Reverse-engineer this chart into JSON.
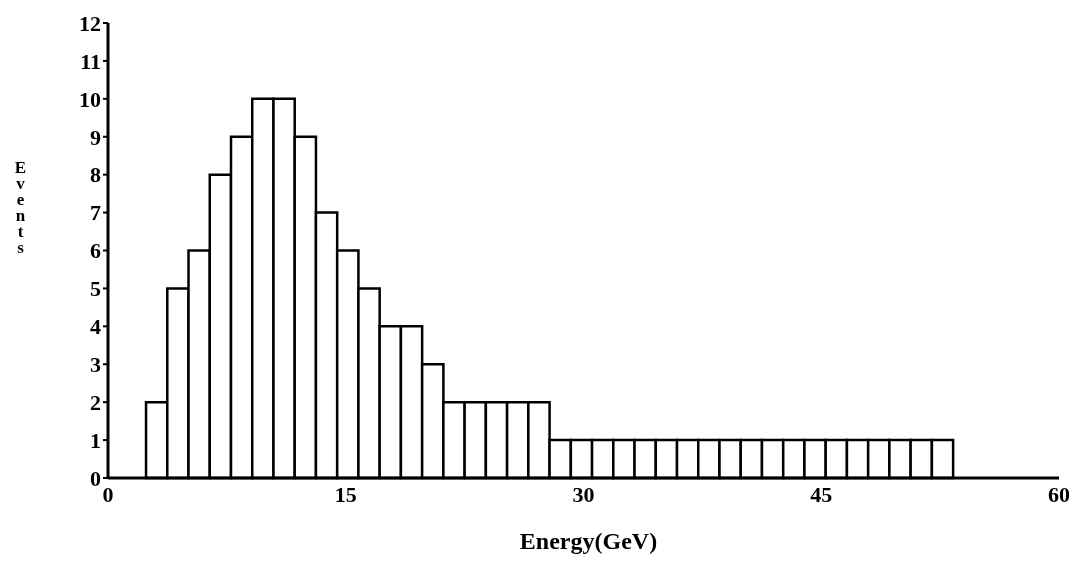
{
  "chart_data": {
    "type": "histogram",
    "xlabel": "Energy(GeV)",
    "ylabel": "Events",
    "bins": [
      2.4,
      3.74,
      5.08,
      6.42,
      7.76,
      9.1,
      10.44,
      11.78,
      13.12,
      14.46,
      15.8,
      17.14,
      18.48,
      19.82,
      21.16,
      22.5,
      23.84,
      25.18,
      26.52,
      27.86,
      29.2,
      30.54,
      31.88,
      33.22,
      34.56,
      35.9,
      37.24,
      38.58,
      39.92,
      41.26,
      42.6,
      43.94,
      45.28,
      46.62,
      47.96,
      49.3,
      50.64,
      51.98,
      53.32
    ],
    "values": [
      2,
      5,
      6,
      8,
      9,
      10,
      10,
      9,
      7,
      6,
      5,
      4,
      4,
      3,
      2,
      2,
      2,
      2,
      2,
      1,
      1,
      1,
      1,
      1,
      1,
      1,
      1,
      1,
      1,
      1,
      1,
      1,
      1,
      1,
      1,
      1,
      1,
      1
    ],
    "color": "#ffffff",
    "xlim": [
      0,
      60
    ],
    "xticks": [
      0,
      15,
      30,
      45,
      60
    ],
    "ylim": [
      0,
      12
    ],
    "yticks": [
      0,
      1,
      2,
      3,
      4,
      5,
      6,
      7,
      8,
      9,
      10,
      11,
      12
    ],
    "grid": false
  }
}
